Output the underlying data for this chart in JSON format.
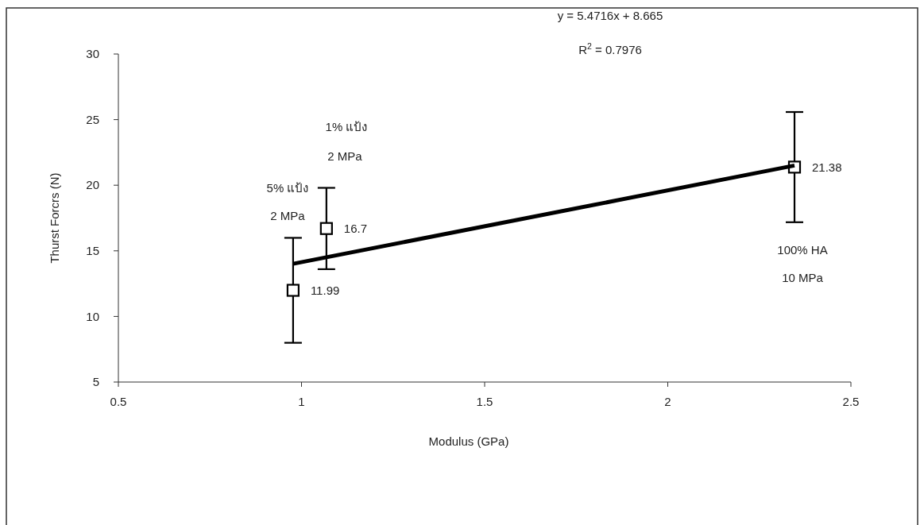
{
  "chart_data": {
    "type": "scatter",
    "xlabel": "Modulus  (GPa)",
    "ylabel": "Thurst Forcrs (N)",
    "xlim": [
      0.5,
      2.5
    ],
    "xticks": [
      0.5,
      1,
      1.5,
      2,
      2.5
    ],
    "ylim": [
      5,
      30
    ],
    "yticks": [
      5,
      10,
      15,
      20,
      25,
      30
    ],
    "grid": false,
    "series": [
      {
        "color": "#000000",
        "marker": "square",
        "x": [
          0.977,
          1.068,
          2.346
        ],
        "values": [
          11.99,
          16.7,
          21.38
        ],
        "errors": [
          4,
          3.1,
          4.2
        ],
        "data_labels": true
      },
      {
        "type": "line",
        "color": "#000000",
        "x": [
          0.977,
          2.346
        ],
        "values": [
          14.01,
          21.5
        ],
        "line_style": "solid"
      }
    ],
    "annotations": [
      "y = 5.4716x + 8.665",
      "R$^{2}$ = 0.7976",
      "5% แป้ง",
      "2 MPa",
      "1% แป้ง",
      "2 MPa",
      "100% HA",
      "10 MPa"
    ]
  }
}
